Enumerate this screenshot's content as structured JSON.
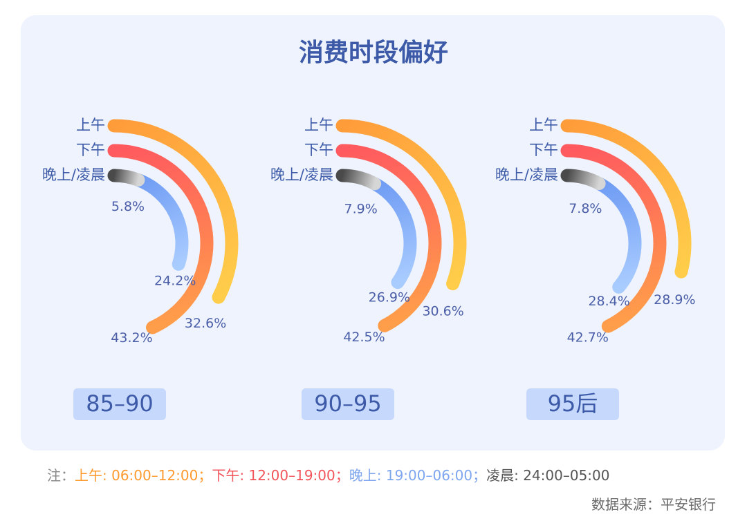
{
  "title": "消费时段偏好",
  "chart_data": [
    {
      "type": "radial_bar",
      "label": "85–90",
      "series": [
        {
          "name": "上午",
          "values": [
            32.6
          ],
          "value_labels": [
            "32.6%"
          ],
          "colors": [
            [
              "#ff9c3a",
              "#ffcd4a"
            ]
          ]
        },
        {
          "name": "下午",
          "values": [
            43.2
          ],
          "value_labels": [
            "43.2%"
          ],
          "colors": [
            [
              "#ff5a5f",
              "#ff9e4a"
            ]
          ]
        },
        {
          "name": "晚上/凌晨",
          "values": [
            5.8,
            24.2
          ],
          "value_labels": [
            "5.8%",
            "24.2%"
          ],
          "colors": [
            [
              "#4a4a4a",
              "#d6d6d6"
            ],
            [
              "#6f9cf4",
              "#a9ccff"
            ]
          ]
        }
      ]
    },
    {
      "type": "radial_bar",
      "label": "90–95",
      "series": [
        {
          "name": "上午",
          "values": [
            30.6
          ],
          "value_labels": [
            "30.6%"
          ],
          "colors": [
            [
              "#ff9c3a",
              "#ffcd4a"
            ]
          ]
        },
        {
          "name": "下午",
          "values": [
            42.5
          ],
          "value_labels": [
            "42.5%"
          ],
          "colors": [
            [
              "#ff5a5f",
              "#ff9e4a"
            ]
          ]
        },
        {
          "name": "晚上/凌晨",
          "values": [
            7.9,
            26.9
          ],
          "value_labels": [
            "7.9%",
            "26.9%"
          ],
          "colors": [
            [
              "#4a4a4a",
              "#d6d6d6"
            ],
            [
              "#6f9cf4",
              "#a9ccff"
            ]
          ]
        }
      ]
    },
    {
      "type": "radial_bar",
      "label": "95后",
      "series": [
        {
          "name": "上午",
          "values": [
            28.9
          ],
          "value_labels": [
            "28.9%"
          ],
          "colors": [
            [
              "#ff9c3a",
              "#ffcd4a"
            ]
          ]
        },
        {
          "name": "下午",
          "values": [
            42.7
          ],
          "value_labels": [
            "42.7%"
          ],
          "colors": [
            [
              "#ff5a5f",
              "#ff9e4a"
            ]
          ]
        },
        {
          "name": "晚上/凌晨",
          "values": [
            7.8,
            28.4
          ],
          "value_labels": [
            "7.8%",
            "28.4%"
          ],
          "colors": [
            [
              "#4a4a4a",
              "#d6d6d6"
            ],
            [
              "#6f9cf4",
              "#a9ccff"
            ]
          ]
        }
      ]
    }
  ],
  "note": [
    {
      "text": "注：",
      "color": "#8a8a8a"
    },
    {
      "text": "上午: 06:00–12:00；",
      "color": "#ff9a2e"
    },
    {
      "text": "下午: 12:00–19:00；",
      "color": "#f2545b"
    },
    {
      "text": "晚上: 19:00–06:00；",
      "color": "#7ea6ee"
    },
    {
      "text": "凌晨: 24:00–05:00",
      "color": "#555555"
    }
  ],
  "source": "数据来源：平安银行"
}
